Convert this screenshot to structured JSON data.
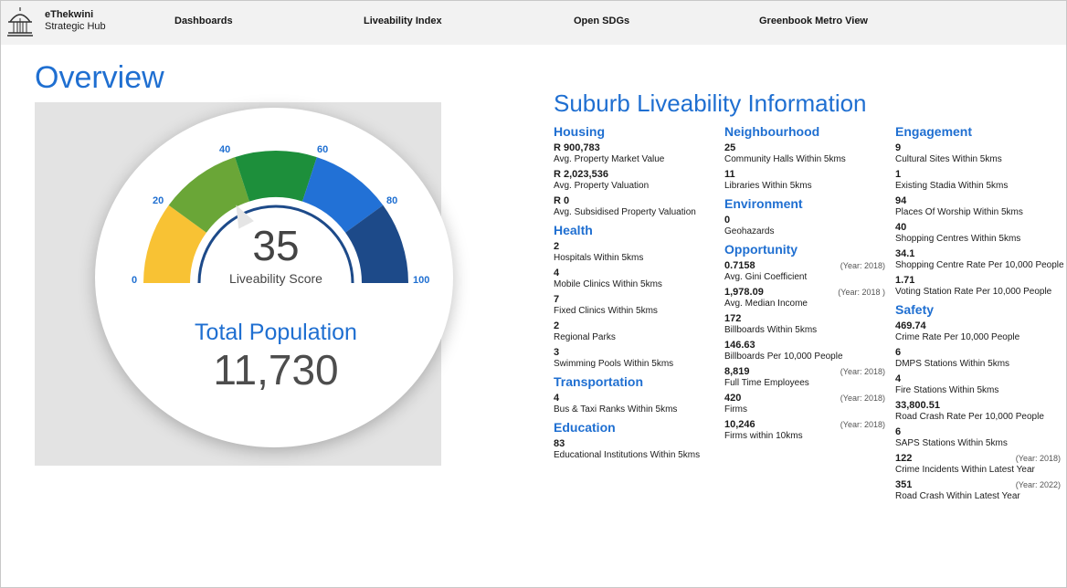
{
  "brand": {
    "line1": "eThekwini",
    "line2": "Strategic Hub"
  },
  "nav": [
    "Dashboards",
    "Liveability Index",
    "Open SDGs",
    "Greenbook Metro View"
  ],
  "overview_title": "Overview",
  "gauge": {
    "score": "35",
    "score_label": "Liveability Score",
    "ticks": [
      "0",
      "20",
      "40",
      "60",
      "80",
      "100"
    ],
    "value": 35,
    "colors": [
      "#f8c234",
      "#6aa637",
      "#1d8f3b",
      "#2271d6",
      "#1d4a89"
    ]
  },
  "population": {
    "title": "Total Population",
    "value": "11,730"
  },
  "info_title": "Suburb Liveability Information",
  "columns": [
    [
      {
        "title": "Housing",
        "metrics": [
          {
            "value": "R 900,783",
            "label": "Avg. Property Market Value"
          },
          {
            "value": "R 2,023,536",
            "label": "Avg. Property Valuation"
          },
          {
            "value": "R 0",
            "label": "Avg. Subsidised Property Valuation"
          }
        ]
      },
      {
        "title": "Health",
        "metrics": [
          {
            "value": "2",
            "label": "Hospitals Within 5kms"
          },
          {
            "value": "4",
            "label": "Mobile Clinics Within 5kms"
          },
          {
            "value": "7",
            "label": "Fixed Clinics Within 5kms"
          },
          {
            "value": "2",
            "label": "Regional Parks"
          },
          {
            "value": "3",
            "label": "Swimming Pools Within 5kms"
          }
        ]
      },
      {
        "title": "Transportation",
        "metrics": [
          {
            "value": "4",
            "label": "Bus & Taxi Ranks Within 5kms"
          }
        ]
      },
      {
        "title": "Education",
        "metrics": [
          {
            "value": "83",
            "label": "Educational Institutions Within 5kms"
          }
        ]
      }
    ],
    [
      {
        "title": "Neighbourhood",
        "metrics": [
          {
            "value": "25",
            "label": "Community Halls Within 5kms"
          },
          {
            "value": "11",
            "label": "Libraries Within 5kms"
          }
        ]
      },
      {
        "title": "Environment",
        "metrics": [
          {
            "value": "0",
            "label": "Geohazards"
          }
        ]
      },
      {
        "title": "Opportunity",
        "metrics": [
          {
            "value": "0.7158",
            "label": "Avg. Gini Coefficient",
            "year": "(Year: 2018)"
          },
          {
            "value": "1,978.09",
            "label": "Avg. Median Income",
            "year": "(Year: 2018 )"
          },
          {
            "value": "172",
            "label": "Billboards Within 5kms"
          },
          {
            "value": "146.63",
            "label": "Billboards Per 10,000 People"
          },
          {
            "value": "8,819",
            "label": "Full Time Employees",
            "year": "(Year: 2018)"
          },
          {
            "value": "420",
            "label": "Firms",
            "year": "(Year: 2018)"
          },
          {
            "value": "10,246",
            "label": "Firms within 10kms",
            "year": "(Year: 2018)"
          }
        ]
      }
    ],
    [
      {
        "title": "Engagement",
        "metrics": [
          {
            "value": "9",
            "label": "Cultural Sites Within 5kms"
          },
          {
            "value": "1",
            "label": "Existing Stadia Within 5kms"
          },
          {
            "value": "94",
            "label": "Places Of Worship Within 5kms"
          },
          {
            "value": "40",
            "label": "Shopping Centres Within 5kms"
          },
          {
            "value": "34.1",
            "label": "Shopping Centre Rate Per 10,000 People"
          },
          {
            "value": "1.71",
            "label": "Voting Station Rate Per 10,000 People"
          }
        ]
      },
      {
        "title": "Safety",
        "metrics": [
          {
            "value": "469.74",
            "label": "Crime Rate Per 10,000 People"
          },
          {
            "value": "6",
            "label": "DMPS Stations Within 5kms"
          },
          {
            "value": "4",
            "label": "Fire Stations Within 5kms"
          },
          {
            "value": "33,800.51",
            "label": "Road Crash Rate Per 10,000 People"
          },
          {
            "value": "6",
            "label": "SAPS Stations Within 5kms"
          },
          {
            "value": "122",
            "label": "Crime Incidents Within Latest Year",
            "year": "(Year: 2018)"
          },
          {
            "value": "351",
            "label": "Road Crash Within Latest Year",
            "year": "(Year: 2022)"
          }
        ]
      }
    ]
  ]
}
